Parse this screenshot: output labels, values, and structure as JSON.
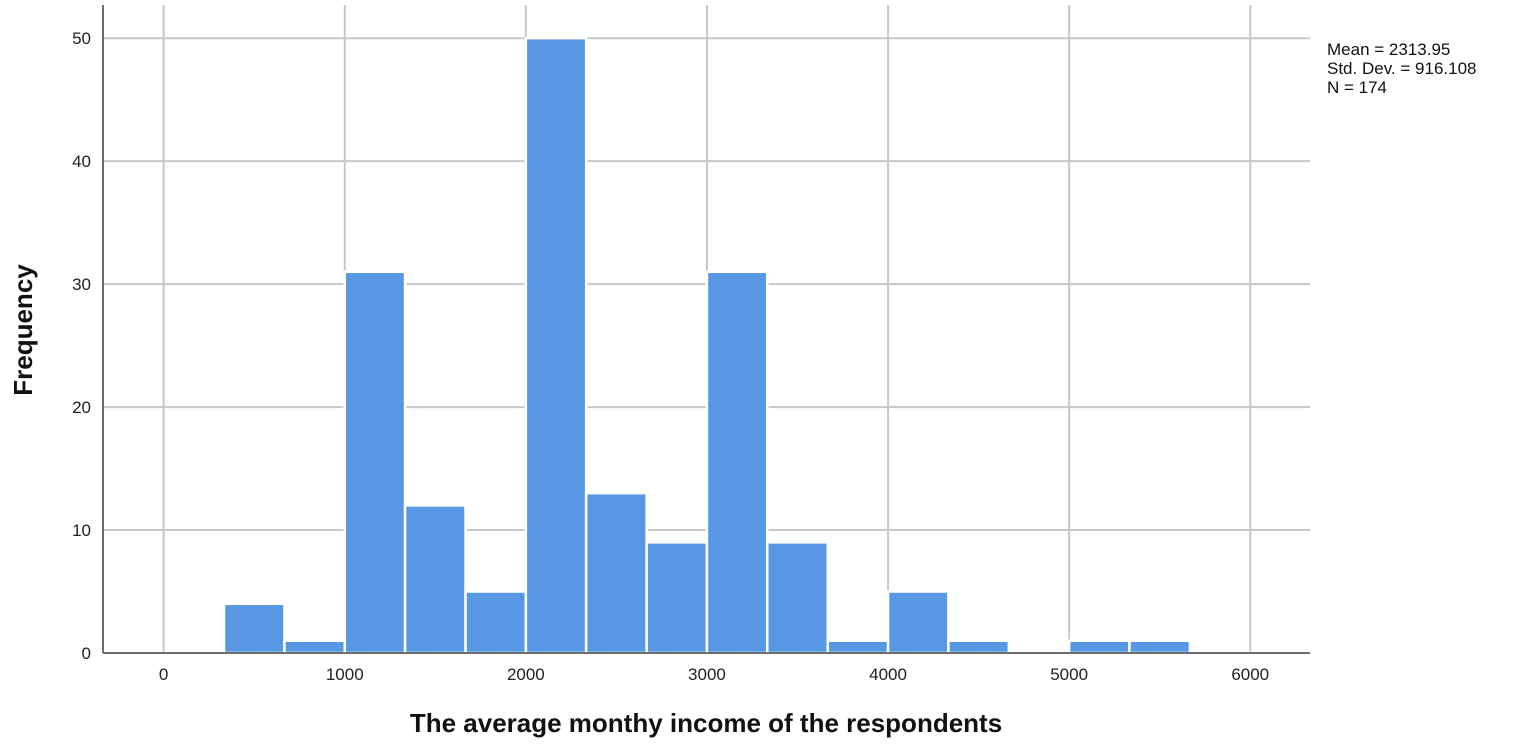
{
  "chart_data": {
    "type": "bar",
    "subtype": "histogram",
    "xlabel": "The average monthy income of the respondents",
    "ylabel": "Frequency",
    "xlim": [
      -335,
      6330
    ],
    "ylim": [
      0,
      52.7
    ],
    "xticks": [
      0,
      1000,
      2000,
      3000,
      4000,
      5000,
      6000
    ],
    "yticks": [
      0,
      10,
      20,
      30,
      40,
      50
    ],
    "grid": true,
    "bar_color": "#5797e3",
    "bins": [
      {
        "x0": 333,
        "x1": 667,
        "value": 4
      },
      {
        "x0": 667,
        "x1": 1000,
        "value": 1
      },
      {
        "x0": 1000,
        "x1": 1333,
        "value": 31
      },
      {
        "x0": 1333,
        "x1": 1667,
        "value": 12
      },
      {
        "x0": 1667,
        "x1": 2000,
        "value": 5
      },
      {
        "x0": 2000,
        "x1": 2333,
        "value": 50
      },
      {
        "x0": 2333,
        "x1": 2667,
        "value": 13
      },
      {
        "x0": 2667,
        "x1": 3000,
        "value": 9
      },
      {
        "x0": 3000,
        "x1": 3333,
        "value": 31
      },
      {
        "x0": 3333,
        "x1": 3667,
        "value": 9
      },
      {
        "x0": 3667,
        "x1": 4000,
        "value": 1
      },
      {
        "x0": 4000,
        "x1": 4333,
        "value": 5
      },
      {
        "x0": 4333,
        "x1": 4667,
        "value": 1
      },
      {
        "x0": 5000,
        "x1": 5333,
        "value": 1
      },
      {
        "x0": 5333,
        "x1": 5667,
        "value": 1
      }
    ],
    "stats": {
      "mean": "Mean = 2313.95",
      "std": "Std. Dev. = 916.108",
      "n": "N = 174"
    }
  }
}
